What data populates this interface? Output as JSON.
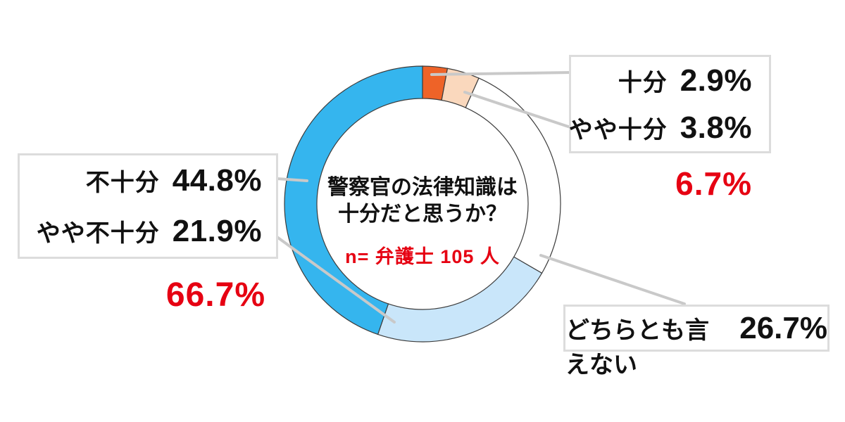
{
  "center": {
    "question_line1": "警察官の法律知識は",
    "question_line2": "十分だと思うか？",
    "sample_note": "n= 弁護士 105 人"
  },
  "right_box": {
    "rows": [
      {
        "label": "十分",
        "value": "2.9%"
      },
      {
        "label": "やや十分",
        "value": "3.8%"
      }
    ],
    "total": "6.7%"
  },
  "left_box": {
    "rows": [
      {
        "label": "不十分",
        "value": "44.8%"
      },
      {
        "label": "やや不十分",
        "value": "21.9%"
      }
    ],
    "total": "66.7%"
  },
  "bottom_box": {
    "label": "どちらとも言えない",
    "value": "26.7%"
  },
  "chart_data": {
    "type": "pie",
    "subtype": "donut",
    "title": "警察官の法律知識は十分だと思うか？",
    "sample_note": "n= 弁護士 105 人",
    "unit": "%",
    "start_angle_deg": 0,
    "direction": "clockwise",
    "segments": [
      {
        "label": "十分",
        "value": 2.9,
        "color": "#ee6328"
      },
      {
        "label": "やや十分",
        "value": 3.8,
        "color": "#fad8bd"
      },
      {
        "label": "どちらとも言えない",
        "value": 26.7,
        "color": "#ffffff"
      },
      {
        "label": "やや不十分",
        "value": 21.9,
        "color": "#c9e6fa"
      },
      {
        "label": "不十分",
        "value": 44.8,
        "color": "#35b5ee"
      }
    ],
    "group_totals": [
      {
        "group": "十分 + やや十分",
        "value": 6.7
      },
      {
        "group": "不十分 + やや不十分",
        "value": 66.7
      }
    ]
  },
  "style": {
    "accent_red": "#e60012",
    "leader_gray": "#c9c9c9",
    "segment_outline": "#3c3c3c",
    "box_border": "#dcdcdc"
  }
}
